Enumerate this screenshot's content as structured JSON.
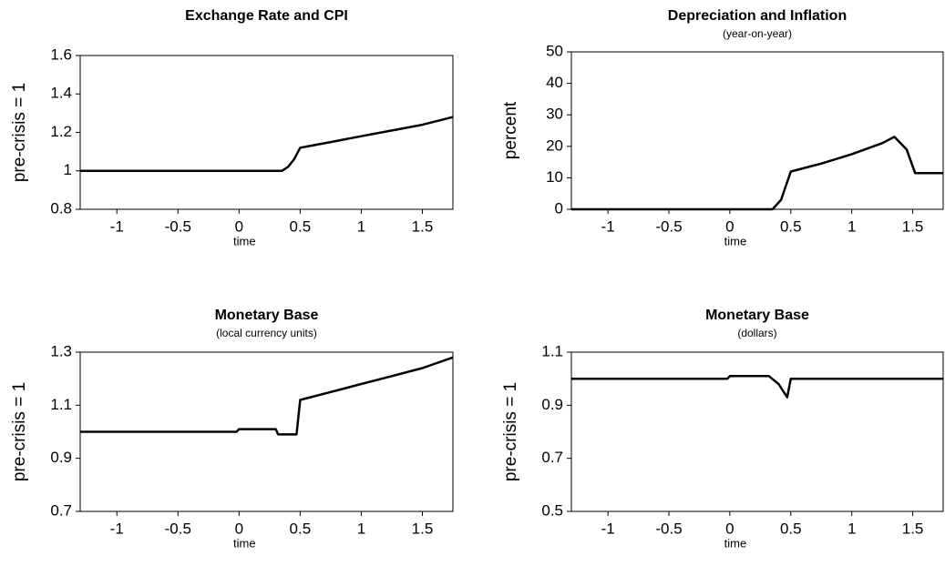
{
  "chart_data": [
    {
      "type": "line",
      "title": "Exchange Rate and CPI",
      "xlabel": "time",
      "ylabel": "pre-crisis = 1",
      "x": [
        -1.3,
        0.35,
        0.4,
        0.45,
        0.5,
        0.75,
        1,
        1.25,
        1.5,
        1.75
      ],
      "values": [
        1,
        1,
        1.02,
        1.06,
        1.12,
        1.15,
        1.18,
        1.21,
        1.24,
        1.28
      ],
      "color": "#000000",
      "xlim": [
        -1.3,
        1.75
      ],
      "xticks": [
        -1,
        -0.5,
        0,
        0.5,
        1,
        1.5
      ],
      "ylim": [
        0.8,
        1.6
      ],
      "yticks": [
        0.8,
        1,
        1.2,
        1.4,
        1.6
      ]
    },
    {
      "type": "line",
      "title": "Depreciation and Inflation",
      "subtitle": "(year-on-year)",
      "xlabel": "time",
      "ylabel": "percent",
      "x": [
        -1.3,
        0.35,
        0.42,
        0.5,
        0.75,
        1,
        1.25,
        1.35,
        1.45,
        1.52,
        1.75
      ],
      "values": [
        0,
        0,
        3,
        12,
        14.5,
        17.5,
        21,
        23,
        19,
        11.5,
        11.5
      ],
      "color": "#000000",
      "xlim": [
        -1.3,
        1.75
      ],
      "xticks": [
        -1,
        -0.5,
        0,
        0.5,
        1,
        1.5
      ],
      "ylim": [
        0,
        50
      ],
      "yticks": [
        0,
        10,
        20,
        30,
        40,
        50
      ]
    },
    {
      "type": "line",
      "title": "Monetary Base",
      "subtitle": "(local currency units)",
      "xlabel": "time",
      "ylabel": "pre-crisis = 1",
      "x": [
        -1.3,
        -0.02,
        0,
        0.3,
        0.32,
        0.47,
        0.5,
        0.75,
        1,
        1.25,
        1.5,
        1.75
      ],
      "values": [
        1,
        1,
        1.01,
        1.01,
        0.99,
        0.99,
        1.12,
        1.15,
        1.18,
        1.21,
        1.24,
        1.28
      ],
      "color": "#000000",
      "xlim": [
        -1.3,
        1.75
      ],
      "xticks": [
        -1,
        -0.5,
        0,
        0.5,
        1,
        1.5
      ],
      "ylim": [
        0.7,
        1.3
      ],
      "yticks": [
        0.7,
        0.9,
        1.1,
        1.3
      ]
    },
    {
      "type": "line",
      "title": "Monetary Base",
      "subtitle": "(dollars)",
      "xlabel": "time",
      "ylabel": "pre-crisis = 1",
      "x": [
        -1.3,
        -0.02,
        0,
        0.32,
        0.4,
        0.47,
        0.5,
        1.75
      ],
      "values": [
        1,
        1,
        1.01,
        1.01,
        0.98,
        0.93,
        1,
        1
      ],
      "color": "#000000",
      "xlim": [
        -1.3,
        1.75
      ],
      "xticks": [
        -1,
        -0.5,
        0,
        0.5,
        1,
        1.5
      ],
      "ylim": [
        0.5,
        1.1
      ],
      "yticks": [
        0.5,
        0.7,
        0.9,
        1.1
      ]
    }
  ]
}
